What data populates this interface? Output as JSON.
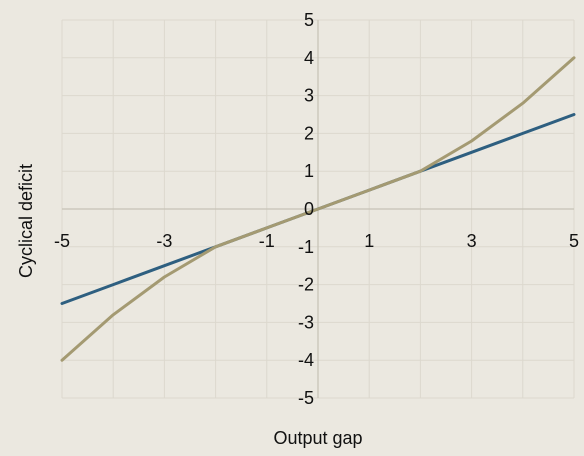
{
  "chart_data": {
    "type": "line",
    "title": "",
    "xlabel": "Output gap",
    "ylabel": "Cyclical deficit",
    "xlim": [
      -5,
      5
    ],
    "ylim": [
      -5,
      5
    ],
    "grid": true,
    "legend": "none",
    "x_ticks": [
      -5,
      -3,
      -1,
      1,
      3,
      5
    ],
    "x_tick_labels": [
      "-5",
      "-3",
      "-1",
      "1",
      "3",
      "5"
    ],
    "y_ticks": [
      5,
      4,
      3,
      2,
      1,
      0,
      -1,
      -2,
      -3,
      -4,
      -5
    ],
    "y_tick_labels": [
      "5",
      "4",
      "3",
      "2",
      "1",
      "0",
      "-1",
      "-2",
      "-3",
      "-4",
      "-5"
    ],
    "series": [
      {
        "color": "#2e5f80",
        "x": [
          -5,
          -4,
          -3,
          -2,
          -1,
          0,
          1,
          2,
          3,
          4,
          5
        ],
        "y": [
          -2.5,
          -2,
          -1.5,
          -1,
          -0.5,
          0,
          0.5,
          1,
          1.5,
          2,
          2.5
        ]
      },
      {
        "color": "#a49a72",
        "x": [
          -5,
          -4,
          -3,
          -2,
          -1,
          0,
          1,
          2,
          3,
          4,
          5
        ],
        "y": [
          -4,
          -2.8,
          -1.8,
          -1,
          -0.5,
          0,
          0.5,
          1,
          1.8,
          2.8,
          4
        ]
      }
    ]
  }
}
